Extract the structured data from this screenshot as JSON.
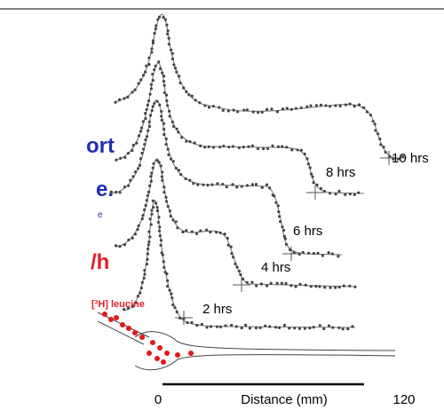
{
  "slide_text": {
    "line1": "ort",
    "line2": "e.",
    "line3": "e",
    "line4": "/h"
  },
  "figure": {
    "trace_labels": [
      "10 hrs",
      "8 hrs",
      "6 hrs",
      "4 hrs",
      "2 hrs"
    ],
    "tracer_label": "[³H] leucine",
    "axis": {
      "start": 0,
      "label": "Distance (mm)",
      "end": 120
    }
  }
}
